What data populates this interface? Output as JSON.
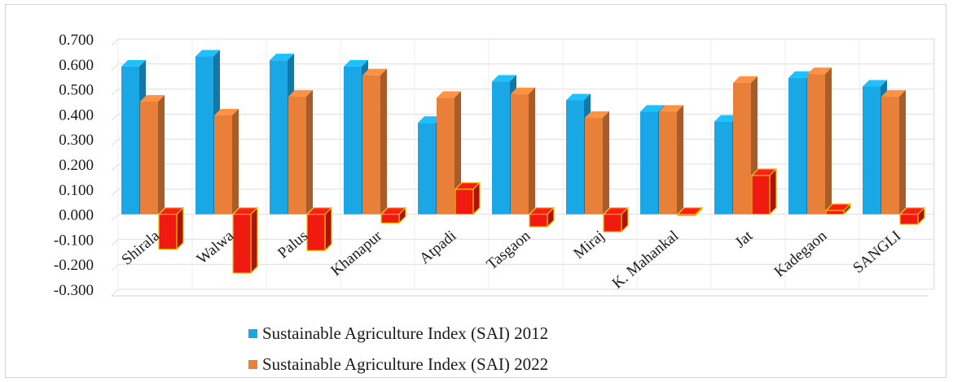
{
  "chart_data": {
    "type": "bar",
    "categories": [
      "Shirala",
      "Walwa",
      "Palus",
      "Khanapur",
      "Atpadi",
      "Tasgaon",
      "Miraj",
      "K. Mahankal",
      "Jat",
      "Kadegaon",
      "SANGLI"
    ],
    "series": [
      {
        "name": "Sustainable Agriculture Index (SAI) 2012",
        "color": "#1aa7e6",
        "values": [
          0.59,
          0.63,
          0.615,
          0.59,
          0.365,
          0.53,
          0.455,
          0.41,
          0.37,
          0.545,
          0.51
        ]
      },
      {
        "name": "Sustainable Agriculture Index (SAI) 2022",
        "color": "#e8803a",
        "values": [
          0.45,
          0.395,
          0.47,
          0.555,
          0.465,
          0.48,
          0.385,
          0.41,
          0.525,
          0.56,
          0.47
        ]
      },
      {
        "color": "#f01a10",
        "values": [
          -0.14,
          -0.235,
          -0.145,
          -0.035,
          0.1,
          -0.05,
          -0.07,
          0.0,
          0.155,
          0.015,
          -0.04
        ]
      }
    ],
    "y_ticks": [
      "0.700",
      "0.600",
      "0.500",
      "0.400",
      "0.300",
      "0.200",
      "0.100",
      "0.000",
      "-0.100",
      "-0.200",
      "-0.300"
    ],
    "ylim": [
      -0.3,
      0.7
    ],
    "grid": true,
    "legend_position": "bottom"
  },
  "legend": {
    "items": [
      {
        "label": "Sustainable Agriculture Index (SAI) 2012",
        "color": "#1aa7e6"
      },
      {
        "label": "Sustainable Agriculture Index (SAI) 2022",
        "color": "#e8803a"
      }
    ]
  }
}
